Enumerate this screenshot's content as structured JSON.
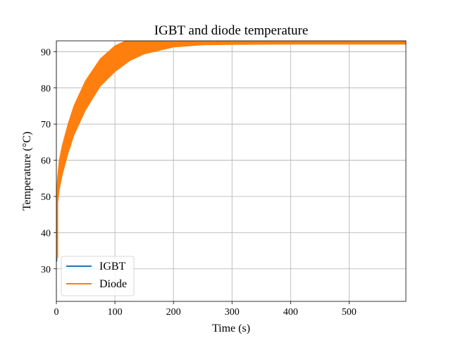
{
  "chart_data": {
    "type": "line",
    "title": "IGBT and diode temperature",
    "xlabel": "Time (s)",
    "ylabel": "Temperature (°C)",
    "xlim": [
      0,
      597
    ],
    "ylim": [
      21,
      93
    ],
    "xticks": [
      0,
      100,
      200,
      300,
      400,
      500
    ],
    "yticks": [
      30,
      40,
      50,
      60,
      70,
      80,
      90
    ],
    "grid": true,
    "legend_position": "lower-left",
    "series": [
      {
        "name": "IGBT",
        "color": "#1f77b4",
        "description_band": false,
        "x": [
          0,
          1,
          2,
          5,
          10,
          20,
          30,
          50,
          75,
          100,
          125,
          150,
          200,
          250,
          300,
          400,
          500,
          597
        ],
        "y": [
          32,
          48,
          51,
          55,
          59,
          66,
          71,
          78,
          84,
          87.7,
          89.8,
          91.2,
          92.4,
          92.9,
          93.0,
          93.1,
          93.1,
          93.1
        ]
      },
      {
        "name": "Diode",
        "color": "#ff7f0e",
        "x": [
          0,
          1,
          2,
          5,
          10,
          20,
          30,
          50,
          75,
          100,
          125,
          150,
          200,
          250,
          300,
          400,
          500,
          597
        ],
        "y_upper": [
          49,
          52,
          55,
          60,
          64,
          70,
          75,
          82,
          88,
          91.6,
          93.5,
          94.6,
          95.4,
          95.7,
          95.8,
          95.8,
          95.8,
          95.8
        ],
        "y_lower": [
          33,
          44,
          48,
          52,
          56,
          62,
          67,
          74,
          80.5,
          84.5,
          87.5,
          89.4,
          91.3,
          91.9,
          92.0,
          92.1,
          92.1,
          92.1
        ]
      }
    ]
  }
}
